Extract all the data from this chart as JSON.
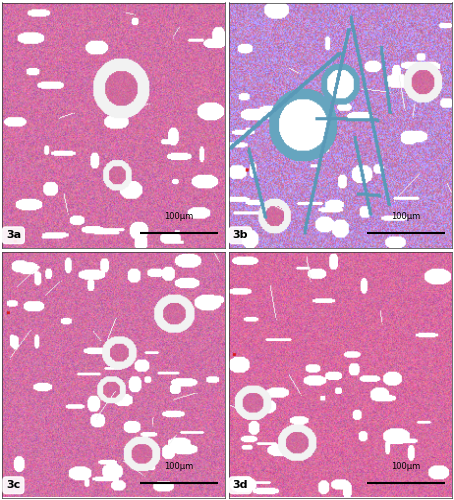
{
  "figure_size": [
    4.54,
    5.0
  ],
  "dpi": 100,
  "scale_bar_text": "100μm",
  "label_font_size": 8,
  "scale_font_size": 6,
  "background_color": "#ffffff",
  "panels": [
    {
      "label": "3a",
      "base_color": [
        0.85,
        0.45,
        0.65
      ],
      "blue_tint": 0.05,
      "seed": 42
    },
    {
      "label": "3b",
      "base_color": [
        0.8,
        0.5,
        0.7
      ],
      "blue_tint": 0.25,
      "seed": 43
    },
    {
      "label": "3c",
      "base_color": [
        0.85,
        0.45,
        0.65
      ],
      "blue_tint": 0.08,
      "seed": 44
    },
    {
      "label": "3d",
      "base_color": [
        0.87,
        0.43,
        0.63
      ],
      "blue_tint": 0.04,
      "seed": 45
    }
  ]
}
